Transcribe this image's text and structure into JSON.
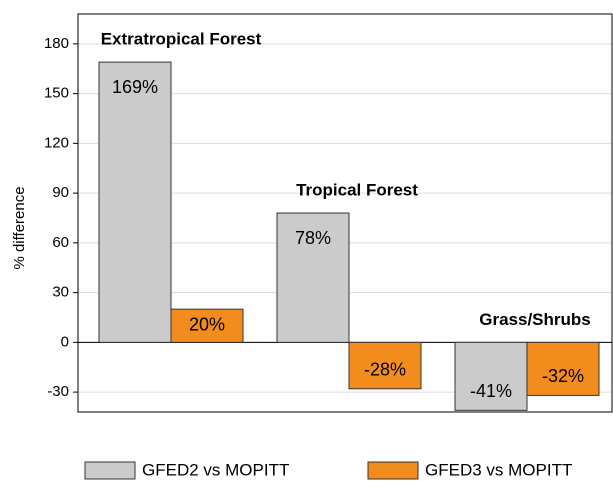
{
  "chart_data": {
    "type": "bar",
    "y_label": "% difference",
    "categories": [
      "Extratropical Forest",
      "Tropical Forest",
      "Grass/Shrubs"
    ],
    "series": [
      {
        "name": "GFED2 vs MOPITT",
        "color": "#cbcbcb",
        "values": [
          169,
          78,
          -41
        ],
        "value_labels": [
          "169%",
          "78%",
          "-41%"
        ]
      },
      {
        "name": "GFED3 vs MOPITT",
        "color": "#f28c1c",
        "values": [
          20,
          -28,
          -32
        ],
        "value_labels": [
          "20%",
          "-28%",
          "-32%"
        ]
      }
    ],
    "ylim": [
      -42,
      198
    ],
    "yticks": [
      -30,
      0,
      30,
      60,
      90,
      120,
      150,
      180
    ],
    "grid": true
  }
}
